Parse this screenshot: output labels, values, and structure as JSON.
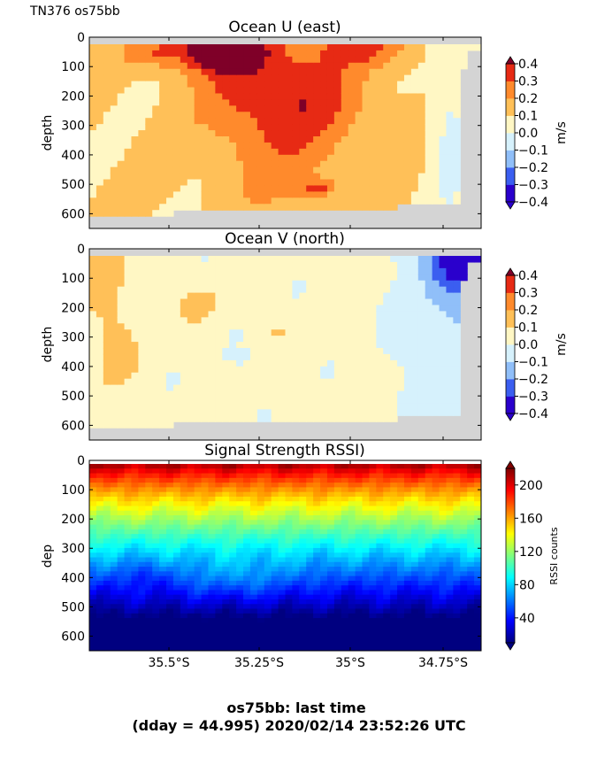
{
  "figure": {
    "header": "TN376 os75bb",
    "footer_line1": "os75bb: last time",
    "footer_line2": "(dday = 44.995) 2020/02/14 23:52:26 UTC"
  },
  "colors": {
    "nodata": "#d4d4d4",
    "velocity_levels": [
      "#2a00cc",
      "#3b5ef0",
      "#90bff9",
      "#d6f1fc",
      "#fff7c4",
      "#ffc058",
      "#ff8a2c",
      "#e72a14",
      "#7f0028"
    ]
  },
  "x_ticks": [
    "35.5°S",
    "35.25°S",
    "35°S",
    "34.75°S"
  ],
  "chart_data": [
    {
      "type": "heatmap",
      "title": "Ocean U (east)",
      "ylabel": "depth",
      "ylim": [
        650,
        0
      ],
      "yticks": [
        0,
        100,
        200,
        300,
        400,
        500,
        600
      ],
      "colorbar": {
        "label": "m/s",
        "ticks": [
          "0.4",
          "0.3",
          "0.2",
          "0.1",
          "0.0",
          "−0.1",
          "−0.2",
          "−0.3",
          "−0.4"
        ],
        "levels": [
          -0.4,
          -0.3,
          -0.2,
          -0.1,
          0.0,
          0.1,
          0.2,
          0.3,
          0.4
        ]
      },
      "colormap": "velocity_levels"
    },
    {
      "type": "heatmap",
      "title": "Ocean V (north)",
      "ylabel": "depth",
      "ylim": [
        650,
        0
      ],
      "yticks": [
        0,
        100,
        200,
        300,
        400,
        500,
        600
      ],
      "colorbar": {
        "label": "m/s",
        "ticks": [
          "0.4",
          "0.3",
          "0.2",
          "0.1",
          "0.0",
          "−0.1",
          "−0.2",
          "−0.3",
          "−0.4"
        ],
        "levels": [
          -0.4,
          -0.3,
          -0.2,
          -0.1,
          0.0,
          0.1,
          0.2,
          0.3,
          0.4
        ]
      },
      "colormap": "velocity_levels"
    },
    {
      "type": "heatmap",
      "title": "Signal Strength RSSI)",
      "ylabel": "dep",
      "ylim": [
        650,
        0
      ],
      "yticks": [
        0,
        100,
        200,
        300,
        400,
        500,
        600
      ],
      "colorbar": {
        "label": "RSSI counts",
        "ticks": [
          "200",
          "160",
          "120",
          "80",
          "40"
        ],
        "range": [
          10,
          220
        ]
      },
      "colormap": "jet"
    }
  ]
}
